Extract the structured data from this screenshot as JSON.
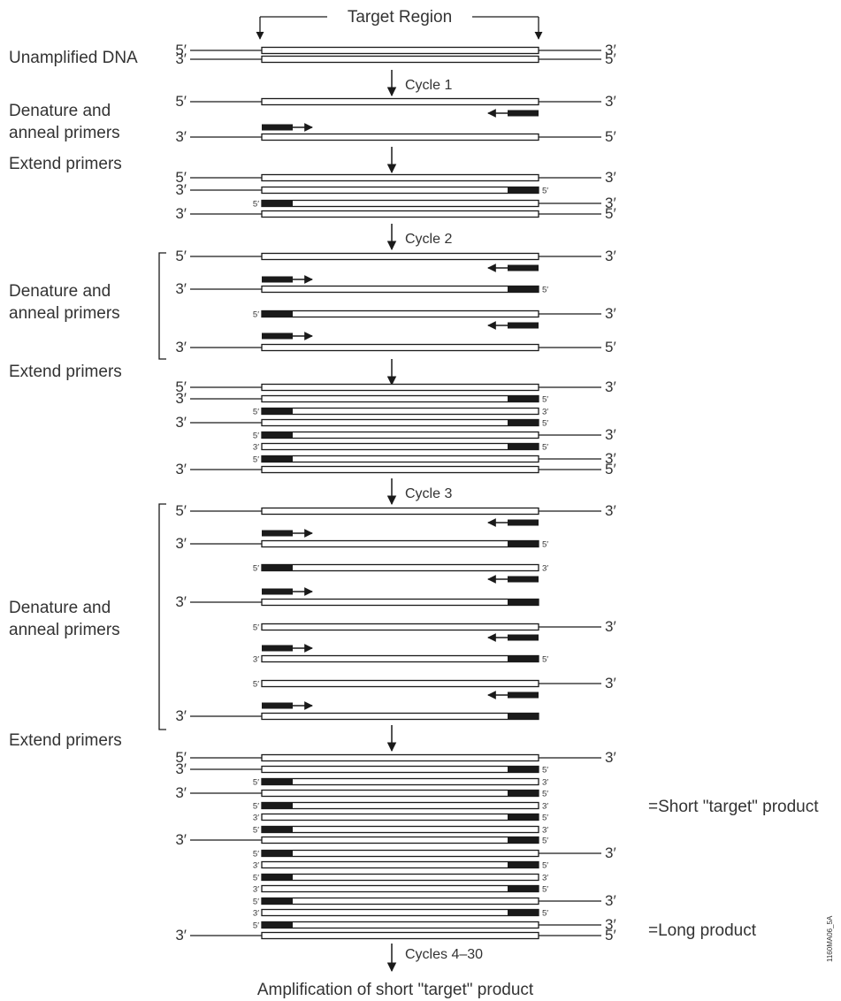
{
  "header": {
    "target_region": "Target Region"
  },
  "labels": {
    "unamplified": "Unamplified DNA",
    "denature_1": "Denature and",
    "anneal_1": "anneal primers",
    "extend_1": "Extend primers",
    "denature_2": "Denature and",
    "anneal_2": "anneal primers",
    "extend_2": "Extend primers",
    "denature_3": "Denature and",
    "anneal_3": "anneal primers",
    "extend_3": "Extend primers"
  },
  "cycles": {
    "cycle_1": "Cycle 1",
    "cycle_2": "Cycle 2",
    "cycle_3": "Cycle 3",
    "cycles_rest": "Cycles 4–30"
  },
  "products": {
    "short": "=Short \"target\" product",
    "long": "=Long product"
  },
  "footer": {
    "conclusion": "Amplification of short \"target\" product",
    "figure_id": "1160MA06_5A"
  },
  "end_labels": {
    "five_prime": "5′",
    "three_prime": "3′"
  },
  "colors": {
    "ink": "#333333",
    "primer": "#1a1a1a",
    "background": "#ffffff"
  }
}
